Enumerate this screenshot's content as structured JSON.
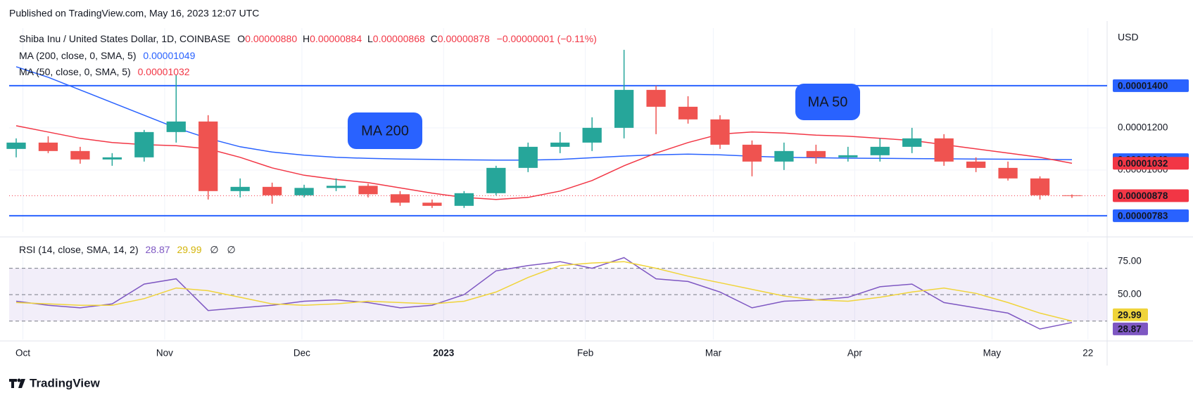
{
  "header": {
    "published": "Published on TradingView.com, May 16, 2023 12:07 UTC"
  },
  "footer": {
    "brand": "TradingView"
  },
  "chart_data": [
    {
      "type": "candlestick",
      "currency": "USD",
      "legend": {
        "symbol": "Shiba Inu / United States Dollar, 1D, COINBASE",
        "ohlc": [
          {
            "key": "O",
            "value": 8.8e-06,
            "label": "0.00000880"
          },
          {
            "key": "H",
            "value": 8.84e-06,
            "label": "0.00000884"
          },
          {
            "key": "L",
            "value": 8.68e-06,
            "label": "0.00000868"
          },
          {
            "key": "C",
            "value": 8.78e-06,
            "label": "0.00000878"
          }
        ],
        "change": "−0.00000001 (−0.11%)"
      },
      "categories": [
        null,
        null,
        null,
        null,
        null,
        null,
        null,
        null,
        null,
        null,
        null,
        null,
        null,
        null,
        null,
        null,
        null,
        null,
        null,
        null,
        null,
        null,
        null,
        null,
        null,
        null,
        null,
        null,
        null,
        null,
        null,
        null,
        null,
        null
      ],
      "open": [
        1.1e-05,
        1.13e-05,
        1.09e-05,
        1.05e-05,
        1.06e-05,
        1.18e-05,
        1.23e-05,
        9e-06,
        9.2e-06,
        8.8e-06,
        9.15e-06,
        9.25e-06,
        8.85e-06,
        8.45e-06,
        8.3e-06,
        8.9e-06,
        1.01e-05,
        1.11e-05,
        1.13e-05,
        1.2e-05,
        1.38e-05,
        1.3e-05,
        1.24e-05,
        1.12e-05,
        1.04e-05,
        1.09e-05,
        1.06e-05,
        1.07e-05,
        1.11e-05,
        1.15e-05,
        1.04e-05,
        1.01e-05,
        9.6e-06,
        8.8e-06
      ],
      "high": [
        1.15e-05,
        1.16e-05,
        1.11e-05,
        1.08e-05,
        1.19e-05,
        1.45e-05,
        1.26e-05,
        9.6e-06,
        9.4e-06,
        9.3e-06,
        9.6e-06,
        9.35e-06,
        9e-06,
        8.6e-06,
        9e-06,
        1.02e-05,
        1.13e-05,
        1.18e-05,
        1.25e-05,
        1.57e-05,
        1.4e-05,
        1.35e-05,
        1.26e-05,
        1.14e-05,
        1.13e-05,
        1.12e-05,
        1.11e-05,
        1.15e-05,
        1.2e-05,
        1.17e-05,
        1.06e-05,
        1.04e-05,
        9.7e-06,
        8.84e-06
      ],
      "low": [
        1.06e-05,
        1.08e-05,
        1.03e-05,
        1.02e-05,
        1.04e-05,
        1.13e-05,
        8.6e-06,
        8.7e-06,
        8.4e-06,
        8.7e-06,
        9e-06,
        8.7e-06,
        8.3e-06,
        8.2e-06,
        8.2e-06,
        8.8e-06,
        9.9e-06,
        1.08e-05,
        1.09e-05,
        1.15e-05,
        1.17e-05,
        1.22e-05,
        1.1e-05,
        9.7e-06,
        1e-05,
        1.03e-05,
        1.04e-05,
        1.04e-05,
        1.08e-05,
        1.02e-05,
        9.9e-06,
        9.5e-06,
        8.6e-06,
        8.68e-06
      ],
      "close": [
        1.13e-05,
        1.09e-05,
        1.05e-05,
        1.06e-05,
        1.18e-05,
        1.23e-05,
        9e-06,
        9.2e-06,
        8.8e-06,
        9.15e-06,
        9.25e-06,
        8.85e-06,
        8.45e-06,
        8.3e-06,
        8.9e-06,
        1.01e-05,
        1.11e-05,
        1.13e-05,
        1.2e-05,
        1.38e-05,
        1.3e-05,
        1.24e-05,
        1.12e-05,
        1.04e-05,
        1.09e-05,
        1.06e-05,
        1.07e-05,
        1.11e-05,
        1.15e-05,
        1.04e-05,
        1.01e-05,
        9.6e-06,
        8.8e-06,
        8.78e-06
      ],
      "up_color": "#26a69a",
      "down_color": "#ef5350",
      "series": [
        {
          "name": "MA (200, close, 0, SMA, 5)",
          "color": "#2962ff",
          "value_label": "0.00001049",
          "annotation": "MA 200",
          "values": [
            1.49e-05,
            1.44e-05,
            1.38e-05,
            1.32e-05,
            1.26e-05,
            1.2e-05,
            1.15e-05,
            1.11e-05,
            1.085e-05,
            1.07e-05,
            1.06e-05,
            1.055e-05,
            1.052e-05,
            1.05e-05,
            1.048e-05,
            1.047e-05,
            1.047e-05,
            1.05e-05,
            1.058e-05,
            1.066e-05,
            1.072e-05,
            1.075e-05,
            1.072e-05,
            1.065e-05,
            1.06e-05,
            1.058e-05,
            1.056e-05,
            1.055e-05,
            1.054e-05,
            1.053e-05,
            1.052e-05,
            1.051e-05,
            1.05e-05,
            1.049e-05
          ]
        },
        {
          "name": "MA (50, close, 0, SMA, 5)",
          "color": "#f23645",
          "value_label": "0.00001032",
          "annotation": "MA 50",
          "values": [
            1.21e-05,
            1.18e-05,
            1.15e-05,
            1.13e-05,
            1.12e-05,
            1.115e-05,
            1.1e-05,
            1.06e-05,
            1.01e-05,
            9.75e-06,
            9.55e-06,
            9.4e-06,
            9.15e-06,
            8.9e-06,
            8.7e-06,
            8.6e-06,
            8.7e-06,
            9e-06,
            9.5e-06,
            1.02e-05,
            1.08e-05,
            1.13e-05,
            1.17e-05,
            1.18e-05,
            1.175e-05,
            1.165e-05,
            1.16e-05,
            1.15e-05,
            1.14e-05,
            1.12e-05,
            1.1e-05,
            1.08e-05,
            1.06e-05,
            1.032e-05
          ]
        }
      ],
      "price_lines": [
        {
          "value": 1.4e-05,
          "label": "0.00001400",
          "color": "#2962ff"
        },
        {
          "value": 7.83e-06,
          "label": "0.00000783",
          "color": "#2962ff"
        }
      ],
      "last_price": {
        "value": 8.78e-06,
        "label": "0.00000878",
        "color": "#f23645"
      },
      "ylim": [
        7.06e-06,
        1.673e-05
      ],
      "yticks": [
        {
          "value": 1.2e-05,
          "label": "0.00001200"
        },
        {
          "value": 1e-05,
          "label": "0.00001000"
        }
      ],
      "xlim": [
        0.28,
        34.6
      ],
      "xticks": [
        {
          "value": 0.71,
          "label": "Oct"
        },
        {
          "value": 5.14,
          "label": "Nov"
        },
        {
          "value": 9.43,
          "label": "Dec"
        },
        {
          "value": 13.86,
          "label": "2023"
        },
        {
          "value": 18.29,
          "label": "Feb"
        },
        {
          "value": 22.29,
          "label": "Mar"
        },
        {
          "value": 26.71,
          "label": "Apr"
        },
        {
          "value": 31,
          "label": "May"
        },
        {
          "value": 34,
          "label": "22"
        }
      ],
      "grid": true
    },
    {
      "type": "line",
      "title": "RSI (14, close, SMA, 14, 2)",
      "extras": [
        "∅",
        "∅"
      ],
      "series": [
        {
          "name": "RSI",
          "color": "#7e57c2",
          "value_label": "28.87",
          "values": [
            45,
            42,
            40,
            43,
            58,
            62,
            38,
            40,
            42,
            45,
            46,
            44,
            40,
            42,
            50,
            68,
            72,
            75,
            70,
            78,
            62,
            60,
            52,
            40,
            45,
            46,
            48,
            56,
            58,
            44,
            40,
            36,
            24,
            28.87
          ]
        },
        {
          "name": "RSI-based MA",
          "color": "#f0d43a",
          "value_label": "29.99",
          "values": [
            44,
            43,
            42,
            42,
            47,
            55,
            53,
            48,
            43,
            42,
            43,
            45,
            44,
            43,
            45,
            52,
            63,
            72,
            74,
            75,
            70,
            64,
            59,
            54,
            49,
            46,
            45,
            48,
            52,
            55,
            51,
            44,
            36,
            29.99
          ]
        }
      ],
      "band": [
        30,
        70
      ],
      "levels": [
        70,
        50,
        30
      ],
      "ylim": [
        16,
        90
      ],
      "yticks": [
        {
          "value": 75,
          "label": "75.00"
        },
        {
          "value": 50,
          "label": "50.00"
        }
      ]
    }
  ]
}
